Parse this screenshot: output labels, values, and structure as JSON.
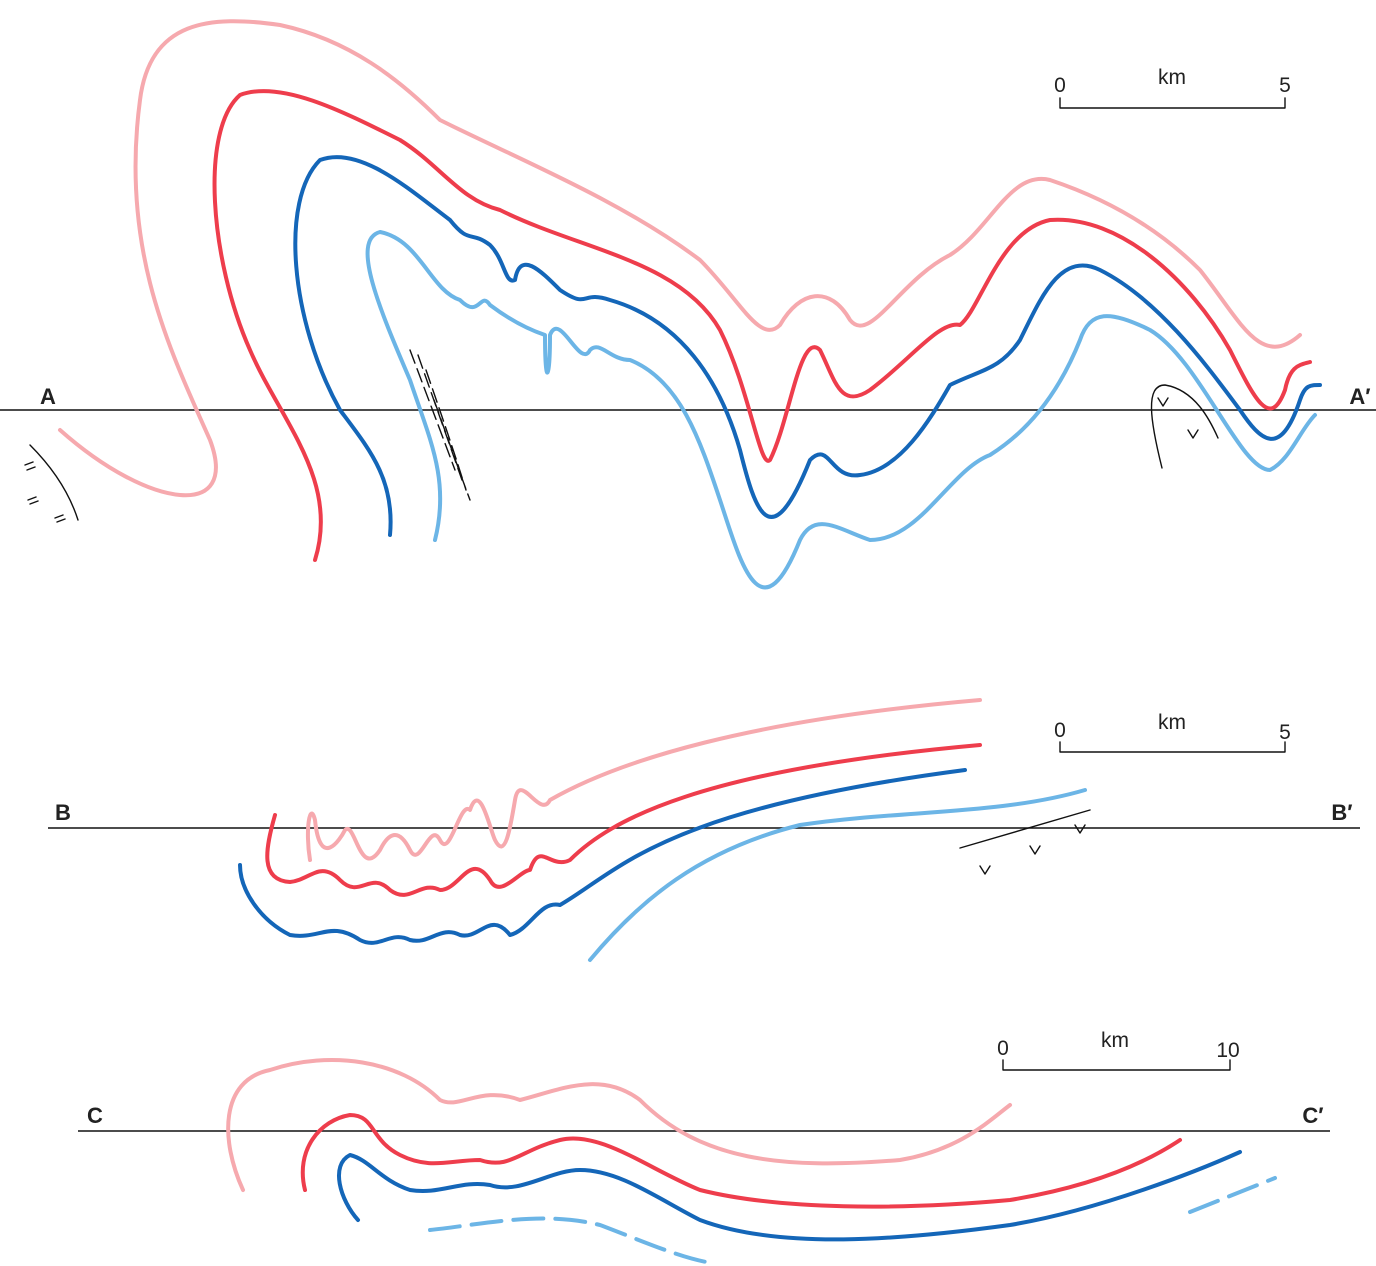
{
  "sections": [
    {
      "start_label": "A",
      "end_label": "A′",
      "scale": {
        "min": "0",
        "unit": "km",
        "max": "5"
      }
    },
    {
      "start_label": "B",
      "end_label": "B′",
      "scale": {
        "min": "0",
        "unit": "km",
        "max": "5"
      }
    },
    {
      "start_label": "C",
      "end_label": "C′",
      "scale": {
        "min": "0",
        "unit": "km",
        "max": "10"
      }
    }
  ]
}
